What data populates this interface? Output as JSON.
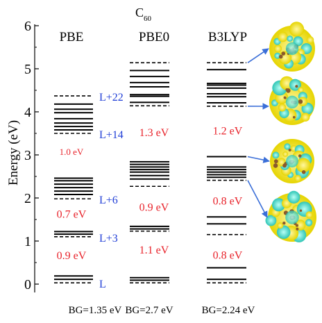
{
  "chart_data": {
    "type": "energy-level diagram",
    "title": "C",
    "title_subscript": "60",
    "ylabel": "Energy (eV)",
    "ylim": [
      0,
      6
    ],
    "yticks": [
      "0",
      "1",
      "2",
      "3",
      "4",
      "5",
      "6"
    ],
    "columns": [
      {
        "name": "PBE",
        "solid_levels": [
          0.11,
          0.19,
          1.16,
          1.22,
          2.08,
          2.16,
          2.24,
          2.32,
          2.4,
          2.46,
          3.58,
          3.66,
          3.74,
          3.84,
          3.98,
          4.06,
          4.18
        ],
        "dashed_levels": [
          0.03,
          1.1,
          1.98,
          3.5,
          4.37
        ],
        "gap_labels": [
          {
            "text": "0.9 eV",
            "y": 0.66
          },
          {
            "text": "0.7 eV",
            "y": 1.62
          },
          {
            "text": "1.0 eV",
            "y": 3.08
          }
        ],
        "bg_label": "BG=1.35 eV"
      },
      {
        "name": "PBE0",
        "solid_levels": [
          0.09,
          0.15,
          1.28,
          1.34,
          2.44,
          2.52,
          2.6,
          2.66,
          2.72,
          2.78,
          2.84,
          4.22,
          4.36,
          4.4,
          4.58,
          4.68,
          4.82,
          4.96
        ],
        "dashed_levels": [
          0.03,
          1.23,
          2.27,
          4.14,
          5.14
        ],
        "gap_labels": [
          {
            "text": "1.1 eV",
            "y": 0.79
          },
          {
            "text": "0.9 eV",
            "y": 1.78
          },
          {
            "text": "1.3 eV",
            "y": 3.52
          }
        ],
        "bg_label": "BG=2.7 eV"
      },
      {
        "name": "B3LYP",
        "solid_levels": [
          0.11,
          0.38,
          1.4,
          1.56,
          2.48,
          2.54,
          2.6,
          2.66,
          2.72,
          2.96,
          4.21,
          4.35,
          4.42,
          4.55,
          4.62,
          4.66,
          4.98
        ],
        "dashed_levels": [
          0.03,
          1.15,
          2.41,
          4.13,
          5.14
        ],
        "gap_labels": [
          {
            "text": "0.8 eV",
            "y": 0.67
          },
          {
            "text": "0.8 eV",
            "y": 1.93
          },
          {
            "text": "1.2 eV",
            "y": 3.56
          }
        ],
        "bg_label": "BG=2.24 eV"
      }
    ],
    "orbital_labels": [
      {
        "text": "L",
        "y": 0.03
      },
      {
        "text": "L+3",
        "y": 1.1
      },
      {
        "text": "L+6",
        "y": 1.98
      },
      {
        "text": "L+14",
        "y": 3.5
      },
      {
        "text": "L+22",
        "y": 4.37
      }
    ],
    "orbital_images": [
      {
        "name": "orbital-image-1",
        "points_to_level": 5.14
      },
      {
        "name": "orbital-image-2",
        "points_to_level": 4.13
      },
      {
        "name": "orbital-image-3",
        "points_to_level": 2.96
      },
      {
        "name": "orbital-image-4",
        "points_to_level": 2.41
      }
    ],
    "grid": false,
    "colors": {
      "levels": "#000000",
      "gap_labels": "#e8222a",
      "orbital_labels": "#1f3dd6",
      "arrows": "#3b6fd8",
      "orbital_yellow": "#f2e81a",
      "orbital_cyan": "#3fd4c4",
      "orbital_brown": "#8a5a2b"
    }
  }
}
